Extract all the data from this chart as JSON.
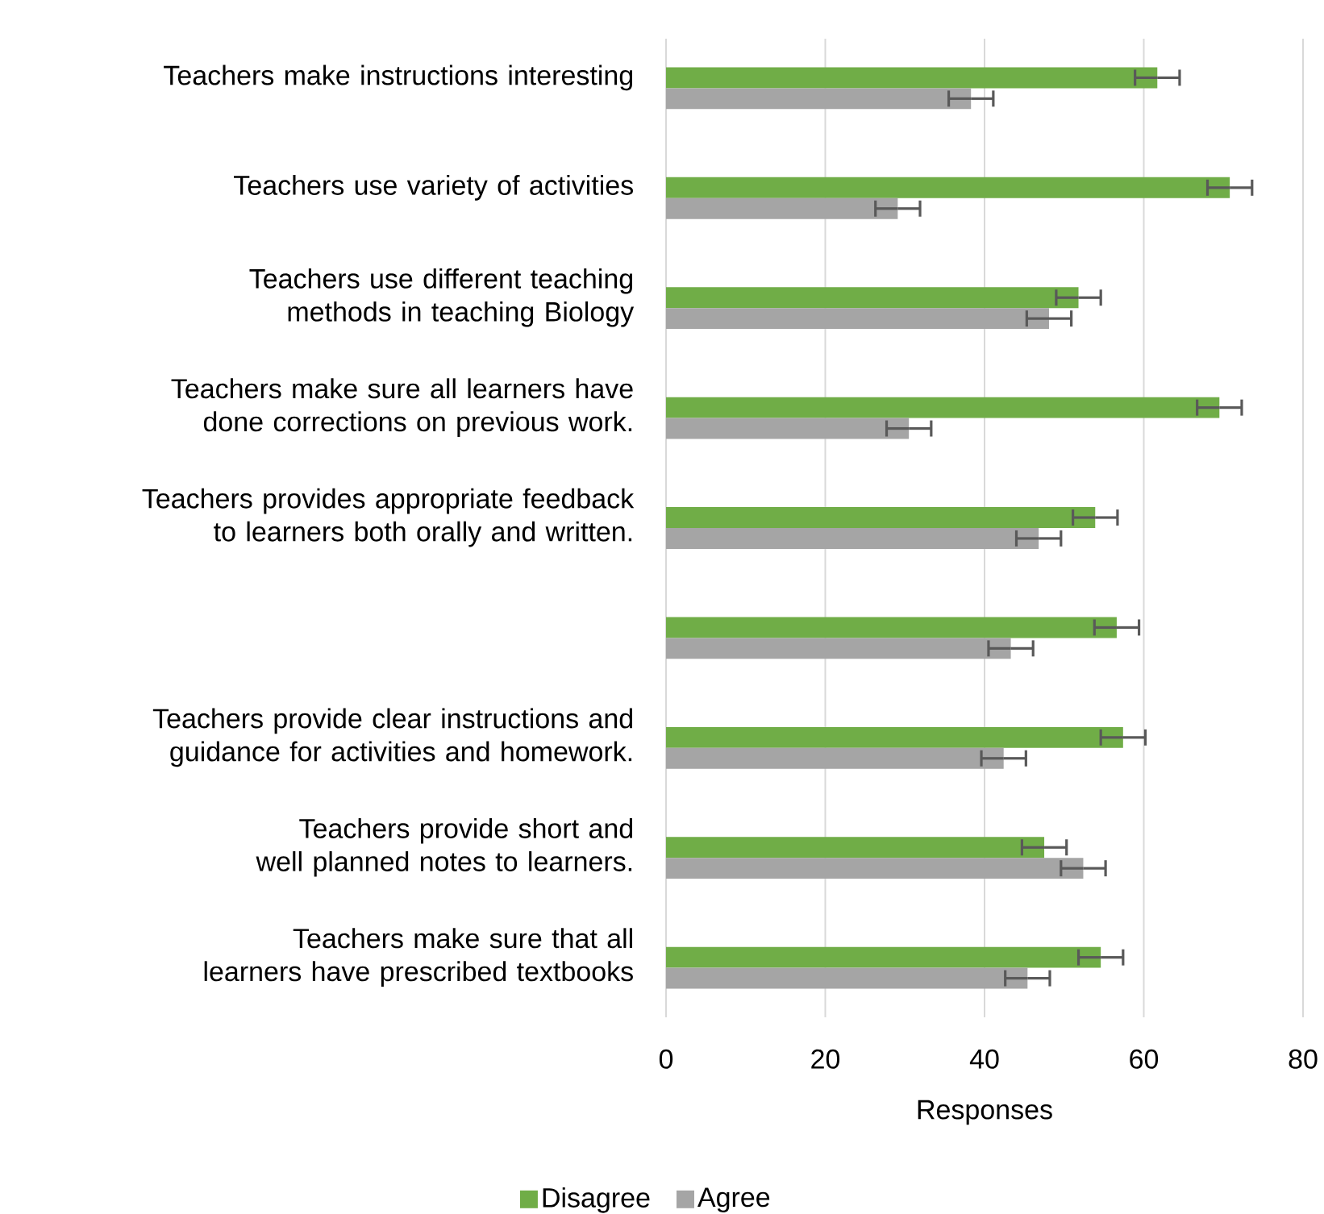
{
  "chart_data": {
    "type": "bar",
    "orientation": "horizontal",
    "xlabel": "Responses",
    "xlim": [
      0,
      80
    ],
    "xticks": [
      0,
      20,
      40,
      60,
      80
    ],
    "grid": "x",
    "legend": "bottom",
    "categories": [
      "Teachers make instructions interesting",
      "Teachers use variety of activities",
      "Teachers use different teaching methods in teaching Biology",
      "Teachers make sure all learners have done corrections on previous work.",
      "Teachers provides appropriate feedback to learners both orally and written.",
      null,
      "Teachers provide clear instructions and guidance for activities and homework.",
      "Teachers provide short and well planned notes to learners.",
      "Teachers make sure that all learners have prescribed textbooks"
    ],
    "series": [
      {
        "name": "Disagree",
        "color": "#70ad47",
        "values": [
          61.7,
          70.8,
          51.8,
          69.5,
          53.9,
          56.6,
          57.4,
          47.5,
          54.6
        ],
        "errors": [
          2.8,
          2.8,
          2.8,
          2.8,
          2.8,
          2.8,
          2.8,
          2.8,
          2.8
        ]
      },
      {
        "name": "Agree",
        "color": "#a5a5a5",
        "values": [
          38.3,
          29.1,
          48.1,
          30.5,
          46.8,
          43.3,
          42.4,
          52.4,
          45.4
        ],
        "errors": [
          2.8,
          2.8,
          2.8,
          2.8,
          2.8,
          2.8,
          2.8,
          2.8,
          2.8
        ]
      }
    ]
  }
}
